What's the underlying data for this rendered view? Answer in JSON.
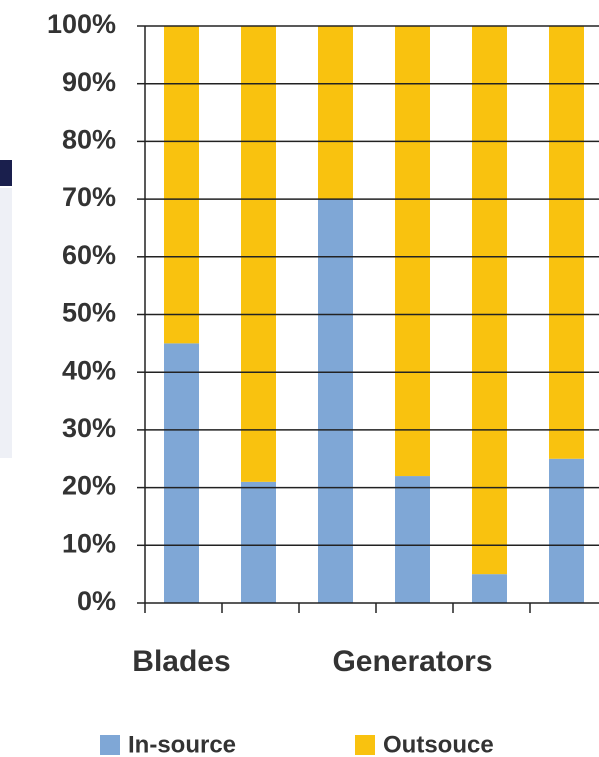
{
  "chart_data": {
    "type": "stacked_bar",
    "categories": [
      "Blades",
      null,
      null,
      "Generators",
      null,
      null
    ],
    "series": [
      {
        "name": "In-source",
        "color": "#7fa7d6",
        "values": [
          45,
          21,
          70,
          22,
          5,
          25
        ]
      },
      {
        "name": "Outsouce",
        "color": "#f9c20f",
        "values": [
          55,
          79,
          30,
          78,
          95,
          75
        ]
      }
    ],
    "ylim": [
      0,
      100
    ],
    "yticks": [
      {
        "value": 0,
        "label": "0%"
      },
      {
        "value": 10,
        "label": "10%"
      },
      {
        "value": 20,
        "label": "20%"
      },
      {
        "value": 30,
        "label": "30%"
      },
      {
        "value": 40,
        "label": "40%"
      },
      {
        "value": 50,
        "label": "50%"
      },
      {
        "value": 60,
        "label": "60%"
      },
      {
        "value": 70,
        "label": "70%"
      },
      {
        "value": 80,
        "label": "80%"
      },
      {
        "value": 90,
        "label": "90%"
      },
      {
        "value": 100,
        "label": "100%"
      }
    ],
    "grid": true,
    "legend": "bottom"
  }
}
